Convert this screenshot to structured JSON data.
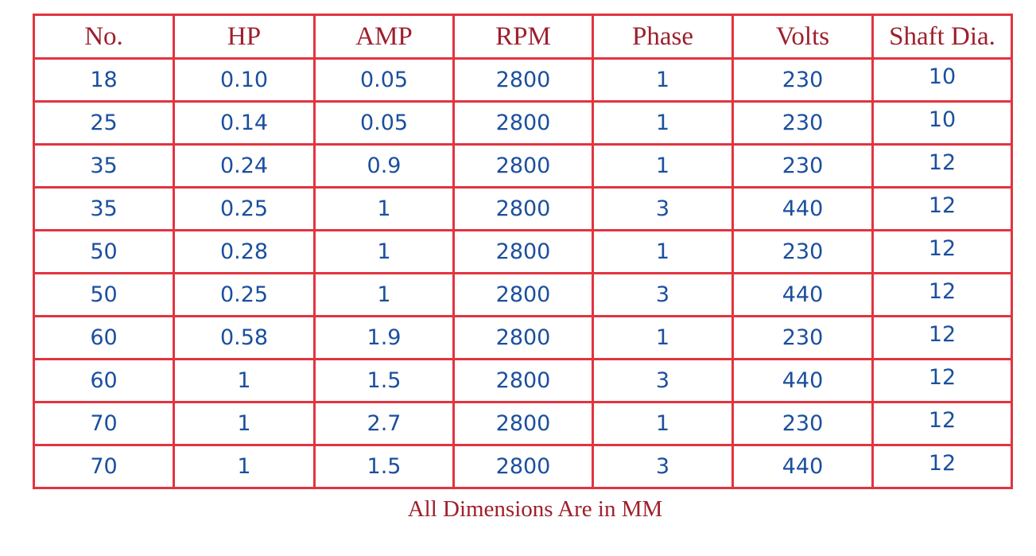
{
  "table": {
    "headers": [
      "No.",
      "HP",
      "AMP",
      "RPM",
      "Phase",
      "Volts",
      "Shaft Dia."
    ],
    "rows": [
      [
        "18",
        "0.10",
        "0.05",
        "2800",
        "1",
        "230",
        "10"
      ],
      [
        "25",
        "0.14",
        "0.05",
        "2800",
        "1",
        "230",
        "10"
      ],
      [
        "35",
        "0.24",
        "0.9",
        "2800",
        "1",
        "230",
        "12"
      ],
      [
        "35",
        "0.25",
        "1",
        "2800",
        "3",
        "440",
        "12"
      ],
      [
        "50",
        "0.28",
        "1",
        "2800",
        "1",
        "230",
        "12"
      ],
      [
        "50",
        "0.25",
        "1",
        "2800",
        "3",
        "440",
        "12"
      ],
      [
        "60",
        "0.58",
        "1.9",
        "2800",
        "1",
        "230",
        "12"
      ],
      [
        "60",
        "1",
        "1.5",
        "2800",
        "3",
        "440",
        "12"
      ],
      [
        "70",
        "1",
        "2.7",
        "2800",
        "1",
        "230",
        "12"
      ],
      [
        "70",
        "1",
        "1.5",
        "2800",
        "3",
        "440",
        "12"
      ]
    ]
  },
  "footer": "All Dimensions Are in MM"
}
